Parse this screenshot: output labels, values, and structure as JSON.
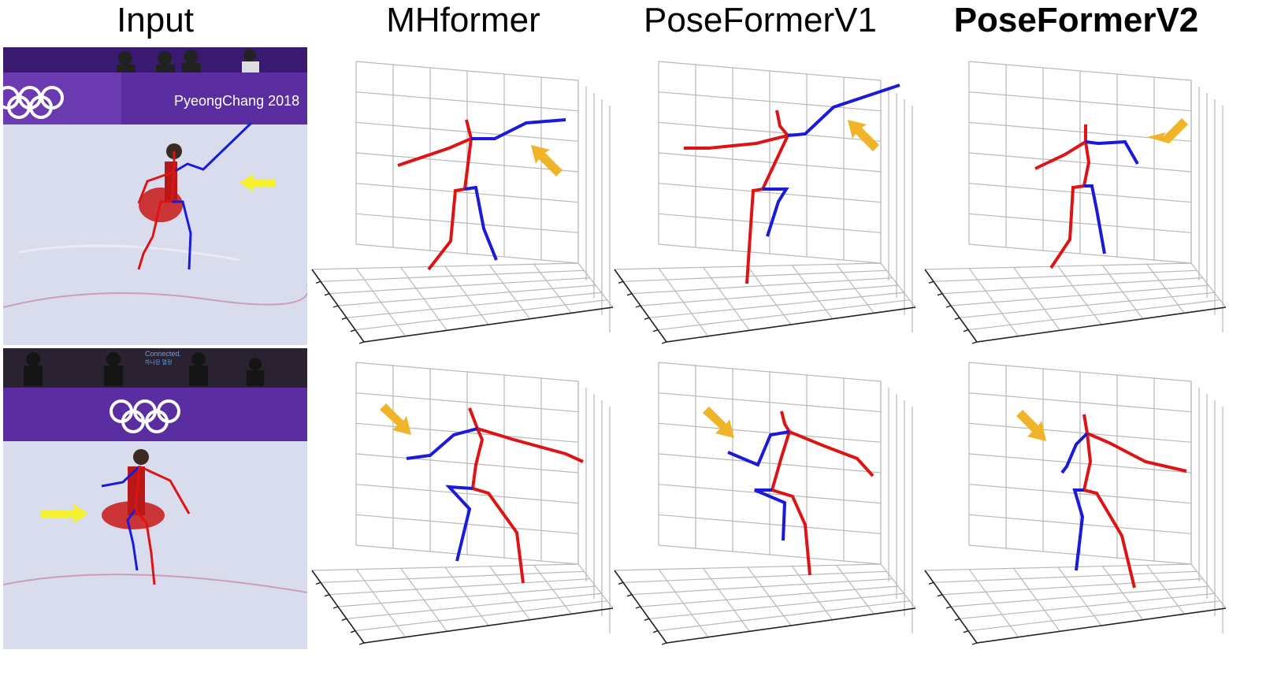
{
  "headers": [
    "Input",
    "MHformer",
    "PoseFormerV1",
    "PoseFormerV2"
  ],
  "highlight_header_index": 3,
  "photo_text": {
    "top_banner": "PyeongChang 2018",
    "bottom_banner_line1": "Connected.",
    "bottom_banner_line2": "하나된 열정"
  },
  "colors": {
    "left_limb": "#dc1414",
    "right_limb": "#1a1ad8",
    "grid": "#b8b8b8",
    "arrow_plot": "#f0b428",
    "arrow_photo": "#f6f032",
    "arena_purple": "#5a2ea0",
    "ice": "#d9dcec"
  },
  "icons": [
    "olympic-rings-icon",
    "arrow-icon"
  ]
}
